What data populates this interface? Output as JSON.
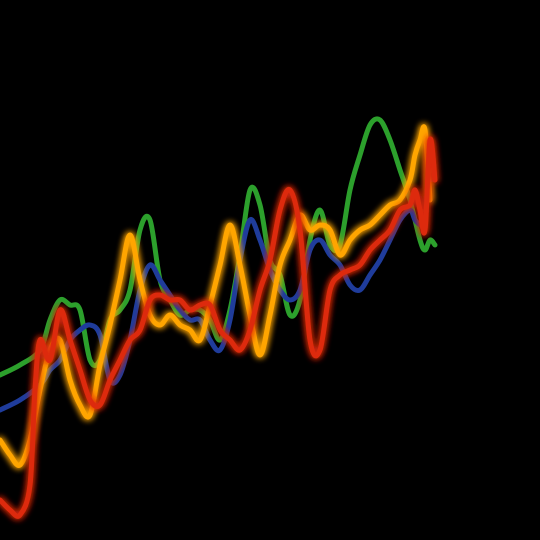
{
  "page": {
    "background": "#000000"
  },
  "chart_data": {
    "type": "line",
    "grid": false,
    "legend": "none",
    "xlim": [
      0,
      108
    ],
    "ylim": [
      0,
      108
    ],
    "series": [
      {
        "color": "#2ca02c",
        "glow": false,
        "stroke_width": 5,
        "x": [
          0,
          4,
          8,
          10,
          12,
          14,
          16,
          18,
          20,
          22,
          24,
          26,
          28,
          30,
          32,
          34,
          36,
          38,
          40,
          42,
          44,
          46,
          48,
          50,
          52,
          54,
          56,
          58,
          60,
          62,
          64,
          66,
          68,
          70,
          72,
          74,
          76,
          78,
          80,
          82,
          84,
          85,
          86,
          87
        ],
        "y": [
          33,
          35,
          38,
          44,
          48,
          47,
          46,
          36,
          36,
          44,
          46,
          50,
          62,
          64,
          52,
          48,
          45,
          46,
          46,
          44,
          40,
          46,
          57,
          70,
          67,
          56,
          53,
          45,
          48,
          60,
          66,
          59,
          59,
          70,
          77,
          83,
          84,
          80,
          74,
          68,
          60,
          58,
          60,
          59
        ]
      },
      {
        "color": "#1f3c9b",
        "glow": false,
        "stroke_width": 5,
        "x": [
          0,
          4,
          8,
          10,
          12,
          14,
          16,
          18,
          20,
          22,
          24,
          26,
          28,
          30,
          32,
          34,
          36,
          38,
          40,
          42,
          44,
          46,
          48,
          50,
          52,
          54,
          56,
          58,
          60,
          62,
          64,
          66,
          68,
          70,
          72,
          74,
          76,
          78,
          80,
          82,
          83,
          84
        ],
        "y": [
          26,
          28,
          31,
          34,
          36,
          40,
          42,
          43,
          41,
          32,
          33,
          40,
          50,
          55,
          52,
          49,
          46,
          44,
          44,
          40,
          38,
          44,
          56,
          64,
          60,
          54,
          50,
          48,
          50,
          58,
          60,
          57,
          55,
          51,
          50,
          53,
          56,
          60,
          64,
          66,
          64,
          63
        ]
      },
      {
        "color": "#ffa500",
        "glow": true,
        "stroke_width": 5,
        "x": [
          0,
          2,
          4,
          6,
          8,
          10,
          12,
          14,
          16,
          18,
          20,
          22,
          24,
          26,
          28,
          30,
          32,
          34,
          36,
          38,
          40,
          42,
          44,
          46,
          48,
          50,
          52,
          54,
          56,
          58,
          60,
          62,
          64,
          66,
          68,
          70,
          72,
          74,
          76,
          78,
          80,
          82,
          83,
          84,
          85,
          86
        ],
        "y": [
          20,
          17,
          15,
          20,
          30,
          38,
          40,
          32,
          27,
          25,
          35,
          43,
          52,
          61,
          52,
          45,
          43,
          45,
          43,
          42,
          40,
          47,
          55,
          63,
          55,
          45,
          37,
          45,
          55,
          60,
          65,
          62,
          63,
          62,
          57,
          60,
          62,
          63,
          65,
          67,
          68,
          72,
          77,
          80,
          82,
          68
        ]
      },
      {
        "color": "#dd2a10",
        "glow": true,
        "stroke_width": 5,
        "x": [
          0,
          2,
          4,
          6,
          7,
          8,
          10,
          12,
          14,
          16,
          18,
          20,
          22,
          24,
          26,
          28,
          30,
          32,
          34,
          36,
          38,
          40,
          42,
          44,
          46,
          48,
          50,
          52,
          54,
          56,
          58,
          60,
          62,
          64,
          66,
          68,
          70,
          72,
          74,
          76,
          78,
          80,
          82,
          83,
          84,
          85,
          86,
          87
        ],
        "y": [
          8,
          6,
          5,
          11,
          30,
          40,
          36,
          46,
          40,
          34,
          28,
          27,
          32,
          36,
          40,
          42,
          48,
          49,
          48,
          48,
          46,
          47,
          47,
          42,
          40,
          38,
          42,
          50,
          56,
          66,
          70,
          62,
          40,
          38,
          50,
          53,
          54,
          55,
          58,
          60,
          62,
          66,
          67,
          70,
          66,
          62,
          80,
          72
        ]
      }
    ]
  }
}
